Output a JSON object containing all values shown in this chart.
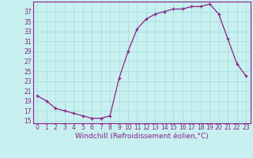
{
  "x": [
    0,
    1,
    2,
    3,
    4,
    5,
    6,
    7,
    8,
    9,
    10,
    11,
    12,
    13,
    14,
    15,
    16,
    17,
    18,
    19,
    20,
    21,
    22,
    23
  ],
  "y": [
    20,
    19,
    17.5,
    17,
    16.5,
    16,
    15.5,
    15.5,
    16,
    23.5,
    29,
    33.5,
    35.5,
    36.5,
    37,
    37.5,
    37.5,
    38,
    38,
    38.5,
    36.5,
    31.5,
    26.5,
    24
  ],
  "line_color": "#882288",
  "marker": "+",
  "background_color": "#c8f0f0",
  "grid_color": "#aadddd",
  "xlabel": "Windchill (Refroidissement éolien,°C)",
  "ylim": [
    14.5,
    39
  ],
  "xlim": [
    -0.5,
    23.5
  ],
  "yticks": [
    15,
    17,
    19,
    21,
    23,
    25,
    27,
    29,
    31,
    33,
    35,
    37
  ],
  "xticks": [
    0,
    1,
    2,
    3,
    4,
    5,
    6,
    7,
    8,
    9,
    10,
    11,
    12,
    13,
    14,
    15,
    16,
    17,
    18,
    19,
    20,
    21,
    22,
    23
  ],
  "label_color": "#882288",
  "tick_color": "#882288",
  "spine_color": "#882288",
  "font_size": 5.5,
  "xlabel_fontsize": 6.5,
  "marker_size": 3.5,
  "linewidth": 0.9
}
